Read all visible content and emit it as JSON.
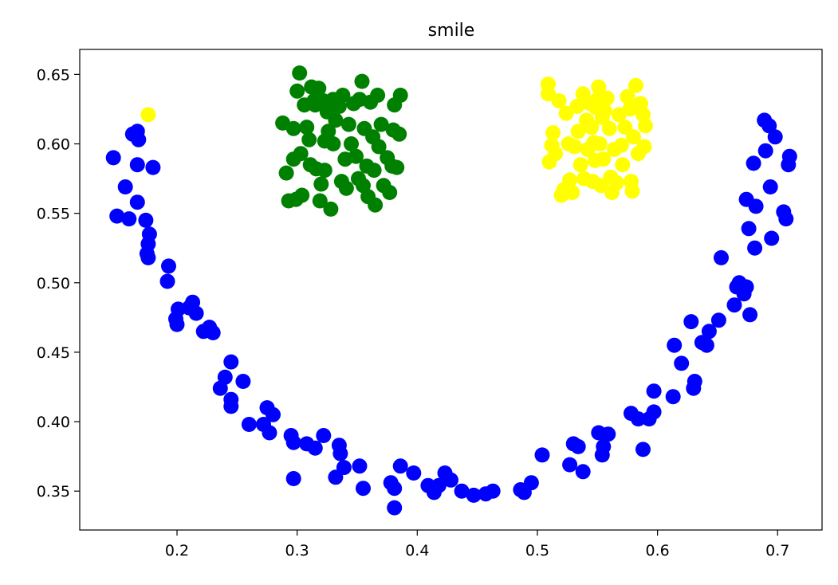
{
  "chart_data": {
    "type": "scatter",
    "title": "smile",
    "xlabel": "",
    "ylabel": "",
    "xlim": [
      0.119,
      0.737
    ],
    "ylim": [
      0.322,
      0.668
    ],
    "x_ticks": [
      "0.2",
      "0.3",
      "0.4",
      "0.5",
      "0.6",
      "0.7"
    ],
    "y_ticks": [
      "0.35",
      "0.40",
      "0.45",
      "0.50",
      "0.55",
      "0.60",
      "0.65"
    ],
    "grid": false,
    "series": [
      {
        "color": "#0000ff",
        "points": [
          [
            0.147,
            0.59
          ],
          [
            0.15,
            0.548
          ],
          [
            0.157,
            0.569
          ],
          [
            0.16,
            0.546
          ],
          [
            0.163,
            0.607
          ],
          [
            0.167,
            0.609
          ],
          [
            0.168,
            0.603
          ],
          [
            0.167,
            0.585
          ],
          [
            0.167,
            0.558
          ],
          [
            0.174,
            0.545
          ],
          [
            0.177,
            0.535
          ],
          [
            0.18,
            0.583
          ],
          [
            0.176,
            0.528
          ],
          [
            0.175,
            0.521
          ],
          [
            0.176,
            0.518
          ],
          [
            0.193,
            0.512
          ],
          [
            0.192,
            0.501
          ],
          [
            0.199,
            0.474
          ],
          [
            0.201,
            0.481
          ],
          [
            0.2,
            0.47
          ],
          [
            0.21,
            0.482
          ],
          [
            0.213,
            0.486
          ],
          [
            0.216,
            0.478
          ],
          [
            0.222,
            0.465
          ],
          [
            0.227,
            0.468
          ],
          [
            0.23,
            0.464
          ],
          [
            0.24,
            0.432
          ],
          [
            0.245,
            0.443
          ],
          [
            0.236,
            0.424
          ],
          [
            0.245,
            0.416
          ],
          [
            0.245,
            0.411
          ],
          [
            0.255,
            0.429
          ],
          [
            0.26,
            0.398
          ],
          [
            0.272,
            0.398
          ],
          [
            0.275,
            0.41
          ],
          [
            0.28,
            0.405
          ],
          [
            0.277,
            0.392
          ],
          [
            0.295,
            0.39
          ],
          [
            0.297,
            0.385
          ],
          [
            0.297,
            0.359
          ],
          [
            0.308,
            0.384
          ],
          [
            0.315,
            0.381
          ],
          [
            0.322,
            0.39
          ],
          [
            0.335,
            0.383
          ],
          [
            0.336,
            0.377
          ],
          [
            0.332,
            0.36
          ],
          [
            0.339,
            0.367
          ],
          [
            0.352,
            0.368
          ],
          [
            0.355,
            0.352
          ],
          [
            0.378,
            0.356
          ],
          [
            0.381,
            0.352
          ],
          [
            0.381,
            0.338
          ],
          [
            0.386,
            0.368
          ],
          [
            0.397,
            0.363
          ],
          [
            0.409,
            0.354
          ],
          [
            0.414,
            0.349
          ],
          [
            0.418,
            0.354
          ],
          [
            0.423,
            0.363
          ],
          [
            0.428,
            0.358
          ],
          [
            0.437,
            0.35
          ],
          [
            0.447,
            0.347
          ],
          [
            0.457,
            0.348
          ],
          [
            0.463,
            0.35
          ],
          [
            0.486,
            0.351
          ],
          [
            0.489,
            0.349
          ],
          [
            0.495,
            0.356
          ],
          [
            0.504,
            0.376
          ],
          [
            0.527,
            0.369
          ],
          [
            0.53,
            0.384
          ],
          [
            0.534,
            0.382
          ],
          [
            0.538,
            0.364
          ],
          [
            0.551,
            0.392
          ],
          [
            0.554,
            0.376
          ],
          [
            0.555,
            0.382
          ],
          [
            0.559,
            0.391
          ],
          [
            0.578,
            0.406
          ],
          [
            0.584,
            0.402
          ],
          [
            0.588,
            0.38
          ],
          [
            0.593,
            0.402
          ],
          [
            0.597,
            0.407
          ],
          [
            0.597,
            0.422
          ],
          [
            0.613,
            0.418
          ],
          [
            0.614,
            0.455
          ],
          [
            0.62,
            0.442
          ],
          [
            0.628,
            0.472
          ],
          [
            0.63,
            0.424
          ],
          [
            0.631,
            0.429
          ],
          [
            0.637,
            0.457
          ],
          [
            0.641,
            0.455
          ],
          [
            0.643,
            0.465
          ],
          [
            0.651,
            0.473
          ],
          [
            0.653,
            0.518
          ],
          [
            0.664,
            0.484
          ],
          [
            0.666,
            0.497
          ],
          [
            0.668,
            0.5
          ],
          [
            0.672,
            0.492
          ],
          [
            0.674,
            0.497
          ],
          [
            0.674,
            0.56
          ],
          [
            0.676,
            0.539
          ],
          [
            0.677,
            0.477
          ],
          [
            0.68,
            0.586
          ],
          [
            0.681,
            0.525
          ],
          [
            0.682,
            0.555
          ],
          [
            0.689,
            0.617
          ],
          [
            0.69,
            0.595
          ],
          [
            0.693,
            0.613
          ],
          [
            0.694,
            0.569
          ],
          [
            0.695,
            0.532
          ],
          [
            0.698,
            0.605
          ],
          [
            0.705,
            0.551
          ],
          [
            0.707,
            0.546
          ],
          [
            0.709,
            0.585
          ],
          [
            0.71,
            0.591
          ]
        ]
      },
      {
        "color": "#008000",
        "points": [
          [
            0.288,
            0.615
          ],
          [
            0.291,
            0.579
          ],
          [
            0.293,
            0.559
          ],
          [
            0.297,
            0.611
          ],
          [
            0.297,
            0.589
          ],
          [
            0.299,
            0.56
          ],
          [
            0.3,
            0.638
          ],
          [
            0.302,
            0.651
          ],
          [
            0.303,
            0.593
          ],
          [
            0.304,
            0.563
          ],
          [
            0.306,
            0.628
          ],
          [
            0.308,
            0.612
          ],
          [
            0.31,
            0.603
          ],
          [
            0.311,
            0.585
          ],
          [
            0.312,
            0.641
          ],
          [
            0.314,
            0.631
          ],
          [
            0.316,
            0.582
          ],
          [
            0.318,
            0.64
          ],
          [
            0.319,
            0.559
          ],
          [
            0.32,
            0.571
          ],
          [
            0.322,
            0.631
          ],
          [
            0.323,
            0.602
          ],
          [
            0.323,
            0.581
          ],
          [
            0.325,
            0.623
          ],
          [
            0.326,
            0.609
          ],
          [
            0.328,
            0.553
          ],
          [
            0.33,
            0.632
          ],
          [
            0.332,
            0.617
          ],
          [
            0.335,
            0.627
          ],
          [
            0.337,
            0.573
          ],
          [
            0.338,
            0.635
          ],
          [
            0.34,
            0.589
          ],
          [
            0.341,
            0.568
          ],
          [
            0.343,
            0.614
          ],
          [
            0.345,
            0.6
          ],
          [
            0.347,
            0.629
          ],
          [
            0.349,
            0.591
          ],
          [
            0.351,
            0.575
          ],
          [
            0.352,
            0.632
          ],
          [
            0.354,
            0.645
          ],
          [
            0.355,
            0.57
          ],
          [
            0.356,
            0.611
          ],
          [
            0.358,
            0.584
          ],
          [
            0.359,
            0.562
          ],
          [
            0.361,
            0.63
          ],
          [
            0.363,
            0.605
          ],
          [
            0.364,
            0.581
          ],
          [
            0.365,
            0.556
          ],
          [
            0.367,
            0.635
          ],
          [
            0.368,
            0.598
          ],
          [
            0.37,
            0.614
          ],
          [
            0.372,
            0.57
          ],
          [
            0.375,
            0.59
          ],
          [
            0.377,
            0.565
          ],
          [
            0.379,
            0.584
          ],
          [
            0.381,
            0.628
          ],
          [
            0.383,
            0.583
          ],
          [
            0.385,
            0.607
          ],
          [
            0.386,
            0.635
          ],
          [
            0.38,
            0.61
          ],
          [
            0.33,
            0.6
          ],
          [
            0.315,
            0.628
          ]
        ]
      },
      {
        "color": "#ffff00",
        "points": [
          [
            0.176,
            0.621
          ],
          [
            0.509,
            0.643
          ],
          [
            0.509,
            0.636
          ],
          [
            0.51,
            0.587
          ],
          [
            0.512,
            0.599
          ],
          [
            0.513,
            0.608
          ],
          [
            0.515,
            0.593
          ],
          [
            0.518,
            0.631
          ],
          [
            0.52,
            0.563
          ],
          [
            0.522,
            0.567
          ],
          [
            0.524,
            0.622
          ],
          [
            0.526,
            0.6
          ],
          [
            0.527,
            0.574
          ],
          [
            0.529,
            0.565
          ],
          [
            0.531,
            0.598
          ],
          [
            0.533,
            0.627
          ],
          [
            0.534,
            0.609
          ],
          [
            0.536,
            0.585
          ],
          [
            0.538,
            0.636
          ],
          [
            0.539,
            0.575
          ],
          [
            0.541,
            0.617
          ],
          [
            0.542,
            0.596
          ],
          [
            0.544,
            0.629
          ],
          [
            0.545,
            0.612
          ],
          [
            0.546,
            0.573
          ],
          [
            0.547,
            0.601
          ],
          [
            0.548,
            0.588
          ],
          [
            0.549,
            0.626
          ],
          [
            0.55,
            0.632
          ],
          [
            0.551,
            0.641
          ],
          [
            0.552,
            0.6
          ],
          [
            0.553,
            0.57
          ],
          [
            0.554,
            0.619
          ],
          [
            0.555,
            0.589
          ],
          [
            0.556,
            0.624
          ],
          [
            0.558,
            0.633
          ],
          [
            0.56,
            0.611
          ],
          [
            0.561,
            0.576
          ],
          [
            0.562,
            0.565
          ],
          [
            0.564,
            0.596
          ],
          [
            0.566,
            0.572
          ],
          [
            0.568,
            0.621
          ],
          [
            0.57,
            0.599
          ],
          [
            0.571,
            0.585
          ],
          [
            0.573,
            0.612
          ],
          [
            0.575,
            0.634
          ],
          [
            0.577,
            0.625
          ],
          [
            0.578,
            0.573
          ],
          [
            0.579,
            0.566
          ],
          [
            0.58,
            0.605
          ],
          [
            0.582,
            0.642
          ],
          [
            0.584,
            0.593
          ],
          [
            0.586,
            0.629
          ],
          [
            0.588,
            0.621
          ],
          [
            0.589,
            0.598
          ],
          [
            0.59,
            0.613
          ]
        ]
      }
    ]
  }
}
